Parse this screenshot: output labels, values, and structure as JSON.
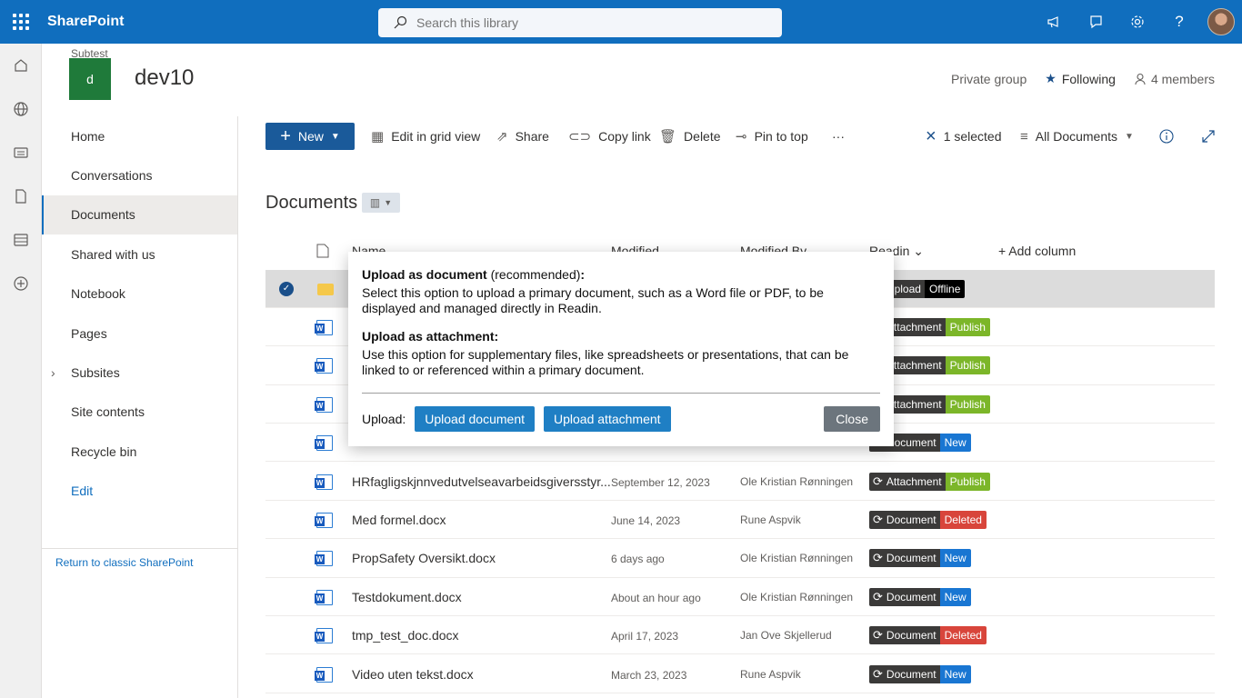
{
  "topbar": {
    "brand": "SharePoint",
    "search_placeholder": "Search this library"
  },
  "site": {
    "subtitle": "Subtest",
    "logo_letter": "d",
    "title": "dev10",
    "privacy": "Private group",
    "following": "Following",
    "members": "4 members"
  },
  "nav": {
    "items": [
      "Home",
      "Conversations",
      "Documents",
      "Shared with us",
      "Notebook",
      "Pages",
      "Subsites",
      "Site contents",
      "Recycle bin",
      "Edit"
    ],
    "classic": "Return to classic SharePoint"
  },
  "cmd": {
    "new": "New",
    "edit_grid": "Edit in grid view",
    "share": "Share",
    "copy_link": "Copy link",
    "delete": "Delete",
    "pin": "Pin to top",
    "more": "···",
    "selected": "1 selected",
    "view": "All Documents"
  },
  "library": {
    "title": "Documents",
    "headers": {
      "name": "Name",
      "modified": "Modified",
      "modified_by": "Modified By",
      "readin": "Readin",
      "add_column": "Add column"
    },
    "rows": [
      {
        "name": "",
        "modified": "",
        "by": "",
        "kind": "Upload",
        "status": "Offline",
        "status_class": "off"
      },
      {
        "name": "",
        "modified": "",
        "by": "",
        "kind": "Attachment",
        "status": "Publish",
        "status_class": "pub"
      },
      {
        "name": "",
        "modified": "",
        "by": "",
        "kind": "Attachment",
        "status": "Publish",
        "status_class": "pub"
      },
      {
        "name": "",
        "modified": "",
        "by": "",
        "kind": "Attachment",
        "status": "Publish",
        "status_class": "pub"
      },
      {
        "name": "",
        "modified": "",
        "by": "",
        "kind": "Document",
        "status": "New",
        "status_class": "new"
      },
      {
        "name": "HRfagligskjnnvedutvelseavarbeidsgiversstyr...",
        "modified": "September 12, 2023",
        "by": "Ole Kristian Rønningen",
        "kind": "Attachment",
        "status": "Publish",
        "status_class": "pub"
      },
      {
        "name": "Med formel.docx",
        "modified": "June 14, 2023",
        "by": "Rune Aspvik",
        "kind": "Document",
        "status": "Deleted",
        "status_class": "del"
      },
      {
        "name": "PropSafety Oversikt.docx",
        "modified": "6 days ago",
        "by": "Ole Kristian Rønningen",
        "kind": "Document",
        "status": "New",
        "status_class": "new"
      },
      {
        "name": "Testdokument.docx",
        "modified": "About an hour ago",
        "by": "Ole Kristian Rønningen",
        "kind": "Document",
        "status": "New",
        "status_class": "new"
      },
      {
        "name": "tmp_test_doc.docx",
        "modified": "April 17, 2023",
        "by": "Jan Ove Skjellerud",
        "kind": "Document",
        "status": "Deleted",
        "status_class": "del"
      },
      {
        "name": "Video uten tekst.docx",
        "modified": "March 23, 2023",
        "by": "Rune Aspvik",
        "kind": "Document",
        "status": "New",
        "status_class": "new"
      }
    ]
  },
  "popup": {
    "doc_title": "Upload as document",
    "doc_rec": " (recommended)",
    "doc_colon": ":",
    "doc_desc": "Select this option to upload a primary document, such as a Word file or PDF, to be displayed and managed directly in Readin.",
    "att_title": "Upload as attachment:",
    "att_desc": "Use this option for supplementary files, like spreadsheets or presentations, that can be linked to or referenced within a primary document.",
    "upload_label": "Upload:",
    "btn_doc": "Upload document",
    "btn_att": "Upload attachment",
    "btn_close": "Close"
  }
}
